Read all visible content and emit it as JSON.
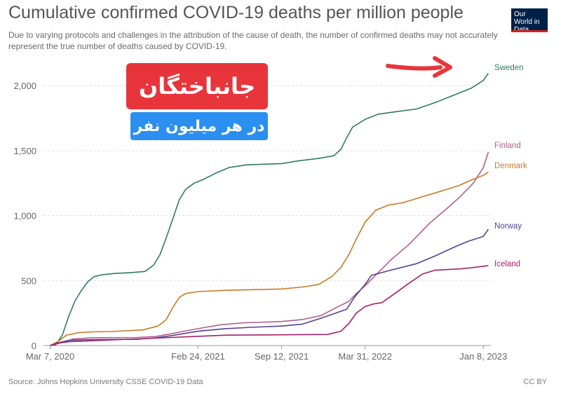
{
  "header": {
    "title": "Cumulative confirmed COVID-19 deaths per million people",
    "subtitle": "Due to varying protocols and challenges in the attribution of the cause of death, the number of confirmed deaths may not accurately represent the true number of deaths caused by COVID-19.",
    "logo_text": "Our World in Data"
  },
  "overlay": {
    "title_fa": "جانباختگان",
    "subtitle_fa": "در هر میلیون نفر",
    "red": "#e8353b",
    "blue": "#2a8ff0"
  },
  "footer": {
    "source": "Source: Johns Hopkins University CSSE COVID-19 Data",
    "license": "CC BY"
  },
  "chart_data": {
    "type": "line",
    "title": "Cumulative confirmed COVID-19 deaths per million people",
    "xlim": [
      "2020-02-20",
      "2023-01-26"
    ],
    "ylim": [
      0,
      2200
    ],
    "x_ticks": [
      {
        "date": "2020-03-07",
        "label": "Mar 7, 2020"
      },
      {
        "date": "2021-02-24",
        "label": "Feb 24, 2021"
      },
      {
        "date": "2021-09-12",
        "label": "Sep 12, 2021"
      },
      {
        "date": "2022-03-31",
        "label": "Mar 31, 2022"
      },
      {
        "date": "2023-01-08",
        "label": "Jan 8, 2023"
      }
    ],
    "y_ticks": [
      {
        "value": 0,
        "label": "0"
      },
      {
        "value": 500,
        "label": "500"
      },
      {
        "value": 1000,
        "label": "1,000"
      },
      {
        "value": 1500,
        "label": "1,500"
      },
      {
        "value": 2000,
        "label": "2,000"
      }
    ],
    "grid": true,
    "series": [
      {
        "name": "Sweden",
        "color": "#2e7d5b",
        "points": [
          [
            "2020-03-07",
            0
          ],
          [
            "2020-03-20",
            5
          ],
          [
            "2020-04-05",
            80
          ],
          [
            "2020-04-20",
            220
          ],
          [
            "2020-05-05",
            340
          ],
          [
            "2020-05-20",
            420
          ],
          [
            "2020-06-05",
            490
          ],
          [
            "2020-06-20",
            530
          ],
          [
            "2020-07-10",
            545
          ],
          [
            "2020-08-10",
            555
          ],
          [
            "2020-09-15",
            560
          ],
          [
            "2020-10-20",
            570
          ],
          [
            "2020-11-10",
            620
          ],
          [
            "2020-11-25",
            700
          ],
          [
            "2020-12-10",
            830
          ],
          [
            "2020-12-25",
            970
          ],
          [
            "2021-01-10",
            1120
          ],
          [
            "2021-01-25",
            1200
          ],
          [
            "2021-02-15",
            1250
          ],
          [
            "2021-03-10",
            1280
          ],
          [
            "2021-04-10",
            1330
          ],
          [
            "2021-05-10",
            1370
          ],
          [
            "2021-06-20",
            1390
          ],
          [
            "2021-09-12",
            1400
          ],
          [
            "2021-10-20",
            1420
          ],
          [
            "2021-12-10",
            1440
          ],
          [
            "2022-01-15",
            1460
          ],
          [
            "2022-02-01",
            1510
          ],
          [
            "2022-02-15",
            1600
          ],
          [
            "2022-03-01",
            1680
          ],
          [
            "2022-03-31",
            1740
          ],
          [
            "2022-05-01",
            1780
          ],
          [
            "2022-06-15",
            1800
          ],
          [
            "2022-08-01",
            1820
          ],
          [
            "2022-09-15",
            1870
          ],
          [
            "2022-11-01",
            1930
          ],
          [
            "2022-12-10",
            1980
          ],
          [
            "2023-01-08",
            2040
          ],
          [
            "2023-01-20",
            2095
          ]
        ]
      },
      {
        "name": "Finland",
        "color": "#b15f8c",
        "points": [
          [
            "2020-03-07",
            0
          ],
          [
            "2020-04-01",
            20
          ],
          [
            "2020-05-01",
            50
          ],
          [
            "2020-06-15",
            60
          ],
          [
            "2020-10-01",
            62
          ],
          [
            "2020-11-15",
            70
          ],
          [
            "2020-12-20",
            90
          ],
          [
            "2021-02-24",
            130
          ],
          [
            "2021-04-20",
            160
          ],
          [
            "2021-06-15",
            175
          ],
          [
            "2021-09-12",
            185
          ],
          [
            "2021-11-01",
            200
          ],
          [
            "2021-12-15",
            230
          ],
          [
            "2022-01-20",
            290
          ],
          [
            "2022-02-20",
            340
          ],
          [
            "2022-03-10",
            400
          ],
          [
            "2022-03-31",
            460
          ],
          [
            "2022-05-01",
            560
          ],
          [
            "2022-06-01",
            660
          ],
          [
            "2022-07-15",
            780
          ],
          [
            "2022-09-01",
            940
          ],
          [
            "2022-10-15",
            1060
          ],
          [
            "2022-11-15",
            1150
          ],
          [
            "2022-12-15",
            1250
          ],
          [
            "2023-01-08",
            1370
          ],
          [
            "2023-01-20",
            1490
          ]
        ]
      },
      {
        "name": "Denmark",
        "color": "#c97a24",
        "points": [
          [
            "2020-03-07",
            0
          ],
          [
            "2020-03-25",
            30
          ],
          [
            "2020-04-15",
            80
          ],
          [
            "2020-05-15",
            100
          ],
          [
            "2020-06-15",
            105
          ],
          [
            "2020-08-01",
            108
          ],
          [
            "2020-10-15",
            120
          ],
          [
            "2020-11-20",
            150
          ],
          [
            "2020-12-10",
            200
          ],
          [
            "2020-12-25",
            290
          ],
          [
            "2021-01-10",
            370
          ],
          [
            "2021-01-25",
            400
          ],
          [
            "2021-02-24",
            415
          ],
          [
            "2021-05-01",
            425
          ],
          [
            "2021-09-12",
            435
          ],
          [
            "2021-11-01",
            450
          ],
          [
            "2021-12-10",
            470
          ],
          [
            "2022-01-10",
            530
          ],
          [
            "2022-02-01",
            600
          ],
          [
            "2022-02-20",
            700
          ],
          [
            "2022-03-10",
            820
          ],
          [
            "2022-03-31",
            950
          ],
          [
            "2022-04-25",
            1040
          ],
          [
            "2022-05-25",
            1080
          ],
          [
            "2022-07-01",
            1100
          ],
          [
            "2022-08-10",
            1140
          ],
          [
            "2022-10-01",
            1190
          ],
          [
            "2022-11-10",
            1230
          ],
          [
            "2022-12-15",
            1280
          ],
          [
            "2023-01-08",
            1310
          ],
          [
            "2023-01-20",
            1335
          ]
        ]
      },
      {
        "name": "Norway",
        "color": "#55418f",
        "points": [
          [
            "2020-03-07",
            0
          ],
          [
            "2020-03-25",
            20
          ],
          [
            "2020-04-20",
            40
          ],
          [
            "2020-06-01",
            45
          ],
          [
            "2020-10-01",
            48
          ],
          [
            "2020-11-15",
            60
          ],
          [
            "2020-12-20",
            75
          ],
          [
            "2021-02-24",
            110
          ],
          [
            "2021-05-01",
            130
          ],
          [
            "2021-07-01",
            140
          ],
          [
            "2021-09-12",
            150
          ],
          [
            "2021-11-01",
            165
          ],
          [
            "2021-12-15",
            210
          ],
          [
            "2022-01-20",
            250
          ],
          [
            "2022-02-15",
            280
          ],
          [
            "2022-03-05",
            370
          ],
          [
            "2022-03-31",
            470
          ],
          [
            "2022-04-15",
            540
          ],
          [
            "2022-06-01",
            580
          ],
          [
            "2022-08-01",
            630
          ],
          [
            "2022-09-15",
            690
          ],
          [
            "2022-11-01",
            760
          ],
          [
            "2022-12-01",
            800
          ],
          [
            "2023-01-08",
            840
          ],
          [
            "2023-01-20",
            895
          ]
        ]
      },
      {
        "name": "Iceland",
        "color": "#a3206a",
        "points": [
          [
            "2020-03-07",
            0
          ],
          [
            "2020-03-28",
            20
          ],
          [
            "2020-04-20",
            29
          ],
          [
            "2021-05-01",
            80
          ],
          [
            "2021-12-31",
            85
          ],
          [
            "2022-02-01",
            110
          ],
          [
            "2022-02-20",
            170
          ],
          [
            "2022-03-10",
            250
          ],
          [
            "2022-03-31",
            300
          ],
          [
            "2022-04-20",
            320
          ],
          [
            "2022-05-10",
            330
          ],
          [
            "2022-06-10",
            400
          ],
          [
            "2022-07-10",
            470
          ],
          [
            "2022-08-15",
            550
          ],
          [
            "2022-09-15",
            580
          ],
          [
            "2022-11-15",
            590
          ],
          [
            "2022-12-15",
            600
          ],
          [
            "2023-01-20",
            615
          ]
        ]
      }
    ]
  }
}
